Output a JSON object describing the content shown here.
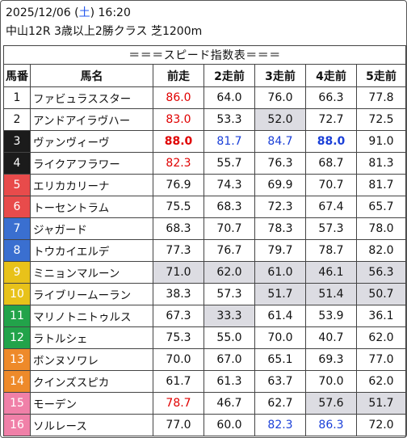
{
  "header": {
    "date": "2025/12/06 (",
    "weekday": "土",
    "time": ") 16:20",
    "race": "中山12R 3歳以上2勝クラス 芝1200m"
  },
  "table": {
    "title": "＝＝＝スピード指数表＝＝＝",
    "columns": [
      "馬番",
      "馬名",
      "前走",
      "2走前",
      "3走前",
      "4走前",
      "5走前"
    ],
    "rows": [
      {
        "no": "1",
        "name": "ファビュラススター",
        "vals": [
          "86.0",
          "64.0",
          "76.0",
          "66.3",
          "77.8"
        ],
        "styles": [
          "red",
          "",
          "",
          "",
          ""
        ],
        "bg": "#ffffff",
        "fg": "#111111"
      },
      {
        "no": "2",
        "name": "アンドアイラヴハー",
        "vals": [
          "83.0",
          "53.3",
          "52.0",
          "72.7",
          "72.5"
        ],
        "styles": [
          "red",
          "",
          "grey",
          "",
          ""
        ],
        "bg": "#ffffff",
        "fg": "#111111"
      },
      {
        "no": "3",
        "name": "ヴァンヴィーヴ",
        "vals": [
          "88.0",
          "81.7",
          "84.7",
          "88.0",
          "91.0"
        ],
        "styles": [
          "red bold",
          "blue",
          "blue",
          "blue bold",
          ""
        ],
        "bg": "#1b1b1b",
        "fg": "#ffffff"
      },
      {
        "no": "4",
        "name": "ライクアフラワー",
        "vals": [
          "82.3",
          "55.7",
          "76.3",
          "68.7",
          "81.3"
        ],
        "styles": [
          "red",
          "",
          "",
          "",
          ""
        ],
        "bg": "#1b1b1b",
        "fg": "#ffffff"
      },
      {
        "no": "5",
        "name": "エリカカリーナ",
        "vals": [
          "76.9",
          "74.3",
          "69.9",
          "70.7",
          "81.7"
        ],
        "styles": [
          "",
          "",
          "",
          "",
          ""
        ],
        "bg": "#e84b4b",
        "fg": "#ffffff"
      },
      {
        "no": "6",
        "name": "トーセントラム",
        "vals": [
          "75.5",
          "68.3",
          "72.3",
          "67.4",
          "65.7"
        ],
        "styles": [
          "",
          "",
          "",
          "",
          ""
        ],
        "bg": "#e84b4b",
        "fg": "#ffffff"
      },
      {
        "no": "7",
        "name": "ジャガード",
        "vals": [
          "68.3",
          "70.7",
          "78.3",
          "57.3",
          "78.0"
        ],
        "styles": [
          "",
          "",
          "",
          "",
          ""
        ],
        "bg": "#3a6fd0",
        "fg": "#ffffff"
      },
      {
        "no": "8",
        "name": "トウカイエルデ",
        "vals": [
          "77.3",
          "76.7",
          "79.7",
          "78.7",
          "82.0"
        ],
        "styles": [
          "",
          "",
          "",
          "",
          ""
        ],
        "bg": "#3a6fd0",
        "fg": "#ffffff"
      },
      {
        "no": "9",
        "name": "ミニョンマルーン",
        "vals": [
          "71.0",
          "62.0",
          "61.0",
          "46.1",
          "56.3"
        ],
        "styles": [
          "grey",
          "grey",
          "grey",
          "grey",
          "grey"
        ],
        "bg": "#e8c21a",
        "fg": "#ffffff"
      },
      {
        "no": "10",
        "name": "ライブリームーラン",
        "vals": [
          "38.3",
          "57.3",
          "51.7",
          "51.4",
          "50.7"
        ],
        "styles": [
          "",
          "",
          "grey",
          "grey",
          "grey"
        ],
        "bg": "#e8c21a",
        "fg": "#ffffff"
      },
      {
        "no": "11",
        "name": "マリノトニトゥルス",
        "vals": [
          "67.3",
          "33.3",
          "61.4",
          "53.9",
          "36.1"
        ],
        "styles": [
          "",
          "grey",
          "",
          "",
          ""
        ],
        "bg": "#22a34a",
        "fg": "#ffffff"
      },
      {
        "no": "12",
        "name": "ラトルシェ",
        "vals": [
          "75.3",
          "55.0",
          "70.0",
          "40.7",
          "62.0"
        ],
        "styles": [
          "",
          "",
          "",
          "",
          ""
        ],
        "bg": "#22a34a",
        "fg": "#ffffff"
      },
      {
        "no": "13",
        "name": "ボンヌソワレ",
        "vals": [
          "70.0",
          "67.0",
          "65.1",
          "69.3",
          "77.0"
        ],
        "styles": [
          "",
          "",
          "",
          "",
          ""
        ],
        "bg": "#ee8a2a",
        "fg": "#ffffff"
      },
      {
        "no": "14",
        "name": "クインズスピカ",
        "vals": [
          "61.7",
          "61.3",
          "63.7",
          "70.0",
          "62.0"
        ],
        "styles": [
          "",
          "",
          "",
          "",
          ""
        ],
        "bg": "#ee8a2a",
        "fg": "#ffffff"
      },
      {
        "no": "15",
        "name": "モーデン",
        "vals": [
          "78.7",
          "46.7",
          "62.7",
          "57.6",
          "51.7"
        ],
        "styles": [
          "red",
          "",
          "",
          "grey",
          "grey"
        ],
        "bg": "#f080a8",
        "fg": "#ffffff"
      },
      {
        "no": "16",
        "name": "ソルレース",
        "vals": [
          "77.0",
          "60.0",
          "82.3",
          "86.3",
          "72.0"
        ],
        "styles": [
          "",
          "",
          "blue",
          "blue",
          ""
        ],
        "bg": "#f080a8",
        "fg": "#ffffff"
      }
    ]
  }
}
